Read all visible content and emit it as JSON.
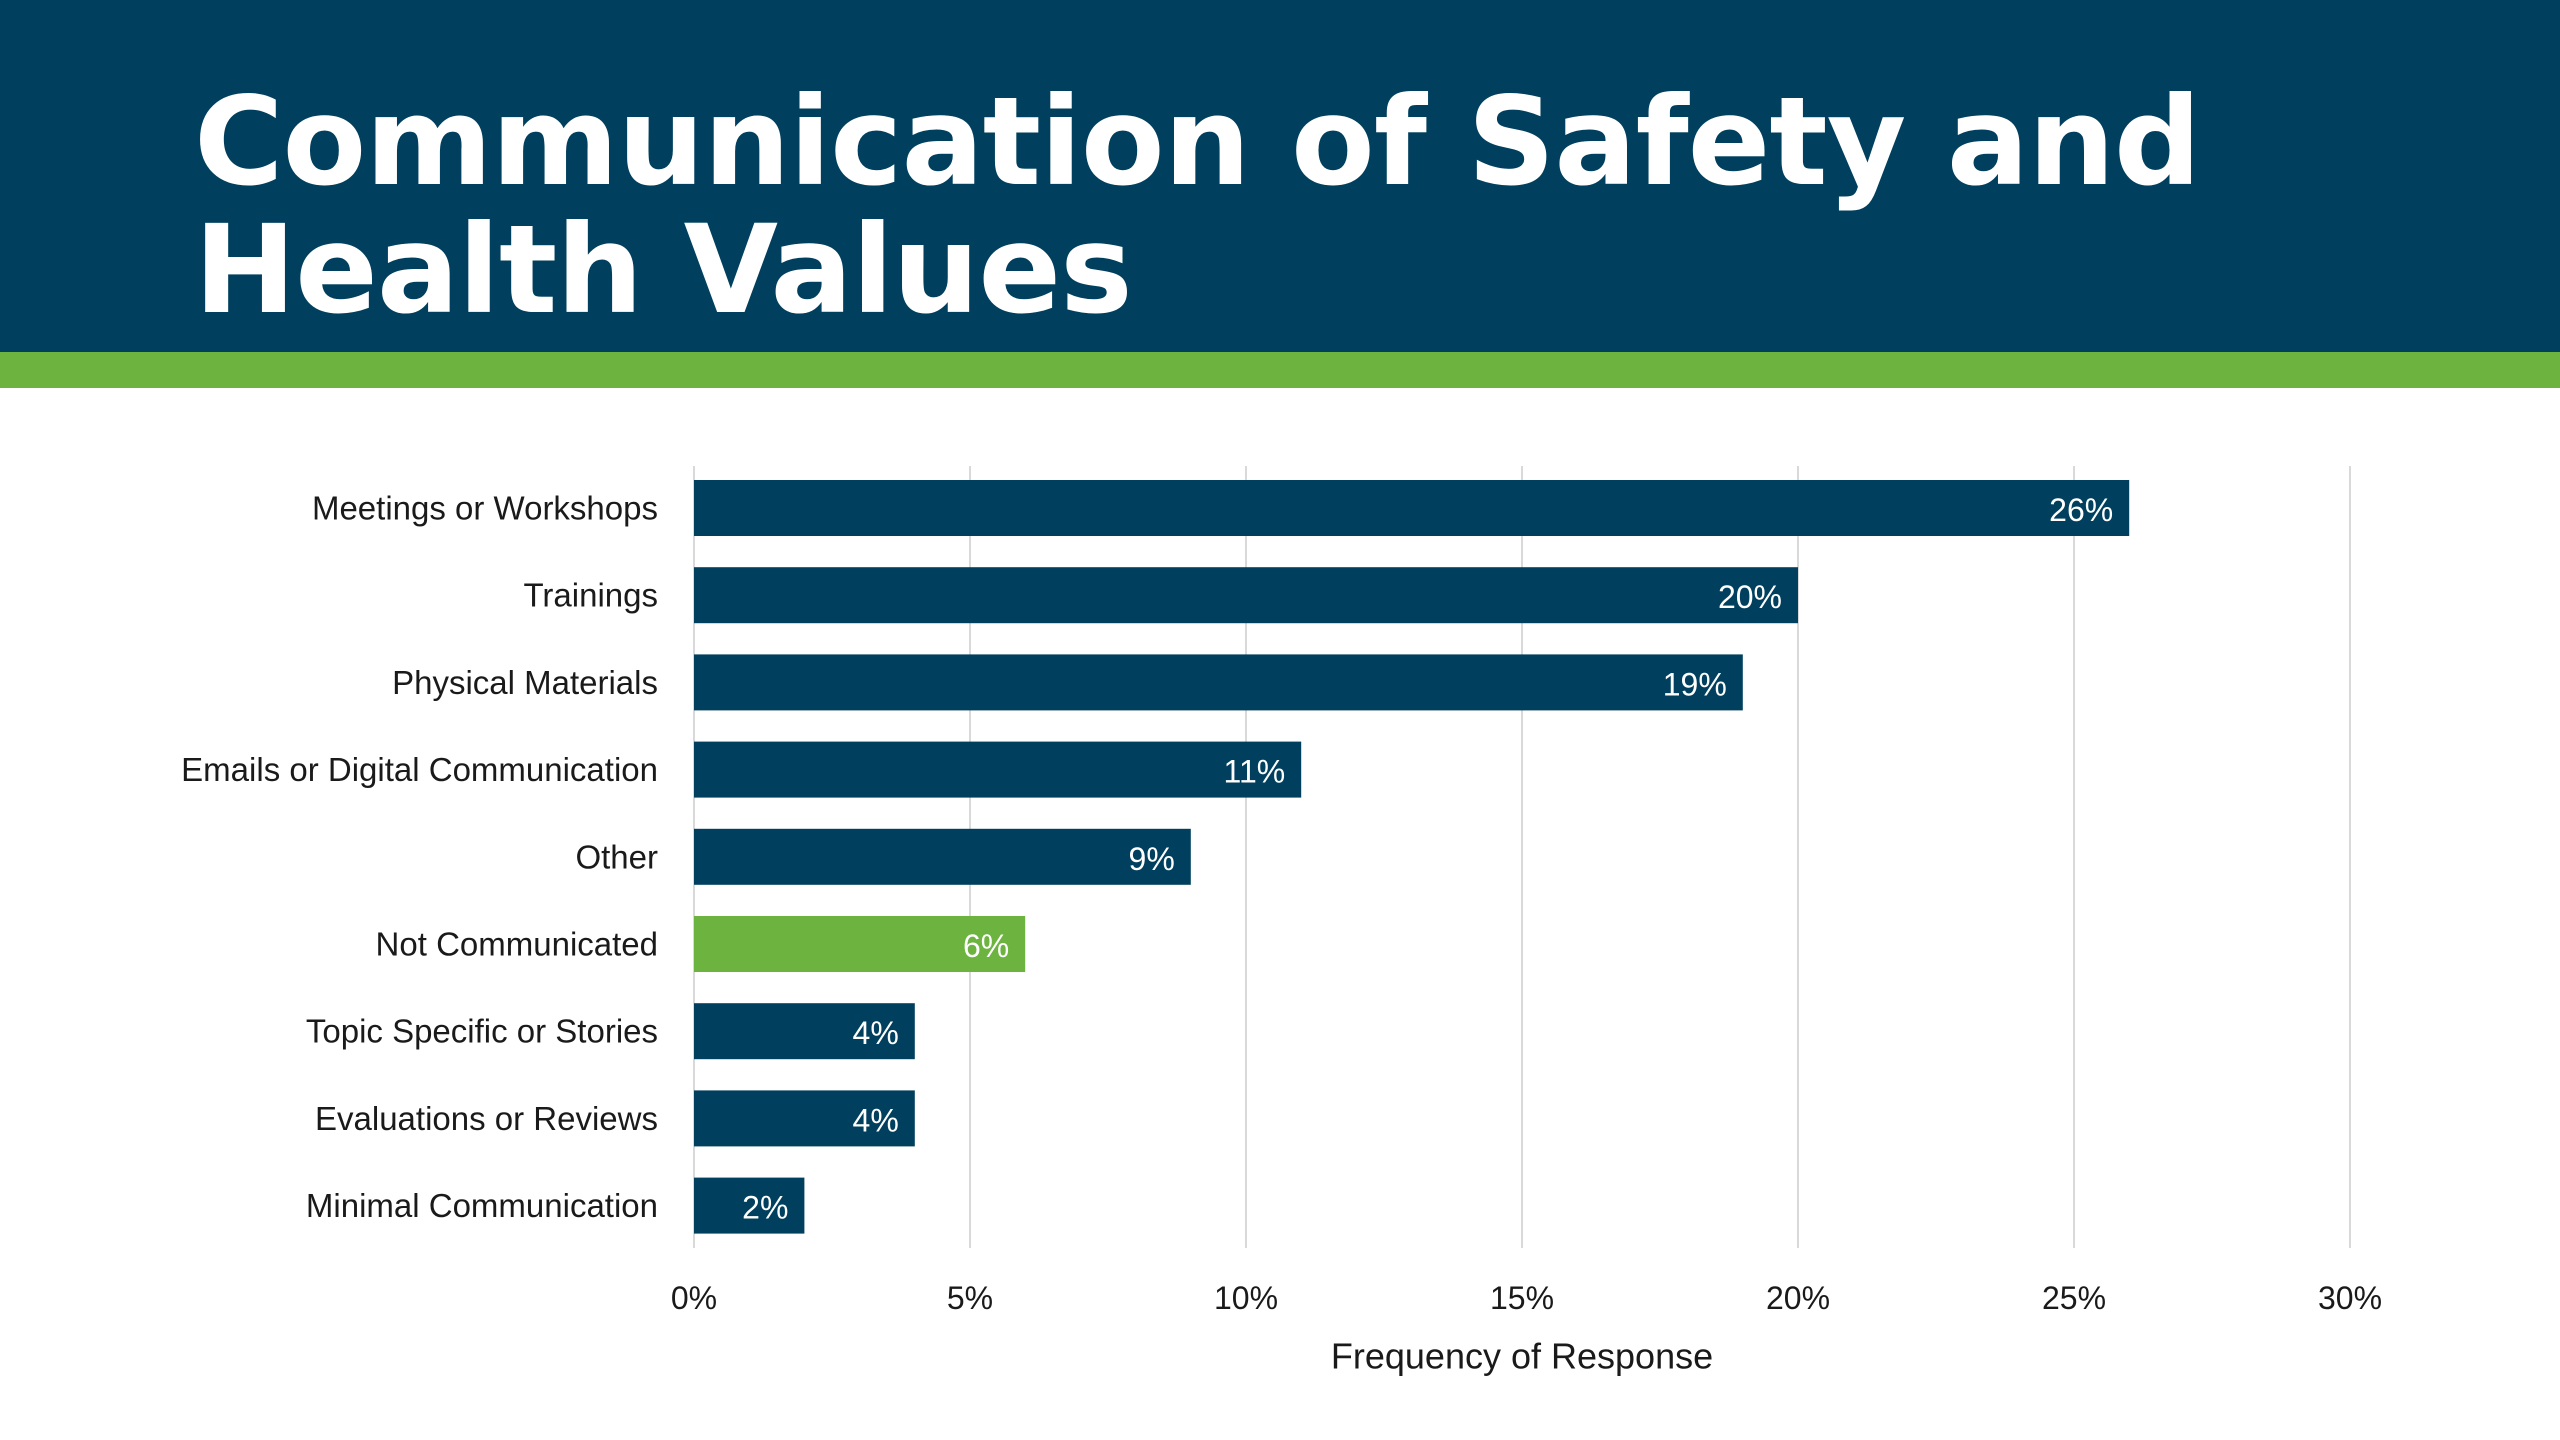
{
  "header": {
    "title": "Communication of Safety and Health Values"
  },
  "colors": {
    "header_bg": "#00405e",
    "accent": "#6db33f",
    "bar_default": "#00405e",
    "bar_highlight": "#6db33f",
    "gridline": "#d9d9d9",
    "text": "#1a1a1a"
  },
  "chart_data": {
    "type": "bar",
    "orientation": "horizontal",
    "categories": [
      "Meetings or Workshops",
      "Trainings",
      "Physical Materials",
      "Emails or Digital Communication",
      "Other",
      "Not Communicated",
      "Topic Specific or Stories",
      "Evaluations or Reviews",
      "Minimal Communication"
    ],
    "values": [
      26,
      20,
      19,
      11,
      9,
      6,
      4,
      4,
      2
    ],
    "value_labels": [
      "26%",
      "20%",
      "19%",
      "11%",
      "9%",
      "6%",
      "4%",
      "4%",
      "2%"
    ],
    "highlight_category": "Not Communicated",
    "xlabel": "Frequency of Response",
    "ylabel": "",
    "xlim": [
      0,
      30
    ],
    "x_ticks": [
      0,
      5,
      10,
      15,
      20,
      25,
      30
    ],
    "x_tick_labels": [
      "0%",
      "5%",
      "10%",
      "15%",
      "20%",
      "25%",
      "30%"
    ],
    "grid": true
  }
}
